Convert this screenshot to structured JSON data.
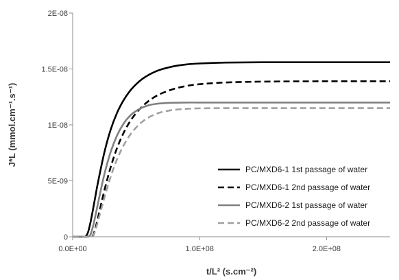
{
  "chart_data": {
    "type": "line",
    "xlabel": "t/L² (s.cm⁻²)",
    "ylabel": "J*L (mmol.cm⁻¹.s⁻¹)",
    "xlim": [
      0,
      250000000
    ],
    "ylim": [
      0,
      2e-08
    ],
    "x_ticks": [
      {
        "value": 0,
        "label": "0.0E+00"
      },
      {
        "value": 100000000,
        "label": "1.0E+08"
      },
      {
        "value": 200000000,
        "label": "2.0E+08"
      }
    ],
    "y_ticks": [
      {
        "value": 0,
        "label": "0"
      },
      {
        "value": 5e-09,
        "label": "5E-09"
      },
      {
        "value": 1e-08,
        "label": "1E-08"
      },
      {
        "value": 1.5e-08,
        "label": "1.5E-08"
      },
      {
        "value": 2e-08,
        "label": "2E-08"
      }
    ],
    "grid": false,
    "legend_position": "bottom-right",
    "x": [
      0,
      2000000,
      4000000,
      6000000,
      8000000,
      10000000,
      12000000,
      14000000,
      16000000,
      18000000,
      20000000,
      25000000,
      30000000,
      35000000,
      40000000,
      45000000,
      50000000,
      55000000,
      60000000,
      65000000,
      70000000,
      80000000,
      90000000,
      100000000,
      120000000,
      150000000,
      200000000,
      250000000
    ],
    "series": [
      {
        "name": "PC/MXD6-1 1st passage of water",
        "color": "#000000",
        "dash": "solid",
        "values": [
          0,
          0,
          0,
          0,
          0,
          1e-11,
          3.7e-10,
          1.27e-09,
          2.44e-09,
          3.68e-09,
          4.9e-09,
          7.56e-09,
          9.6e-09,
          1.109e-08,
          1.219e-08,
          1.302e-08,
          1.364e-08,
          1.412e-08,
          1.448e-08,
          1.476e-08,
          1.497e-08,
          1.525e-08,
          1.541e-08,
          1.549e-08,
          1.557e-08,
          1.56e-08,
          1.56e-08,
          1.56e-08
        ]
      },
      {
        "name": "PC/MXD6-1 2nd passage of water",
        "color": "#000000",
        "dash": "dashed",
        "values": [
          0,
          0,
          0,
          0,
          0,
          0,
          0,
          0,
          1.2e-10,
          8e-10,
          1.74e-09,
          4.15e-09,
          6.25e-09,
          7.95e-09,
          9.26e-09,
          1.028e-08,
          1.106e-08,
          1.167e-08,
          1.215e-08,
          1.253e-08,
          1.282e-08,
          1.323e-08,
          1.349e-08,
          1.364e-08,
          1.379e-08,
          1.387e-08,
          1.39e-08,
          1.39e-08
        ]
      },
      {
        "name": "PC/MXD6-2 1st passage of water",
        "color": "#808080",
        "dash": "solid",
        "values": [
          0,
          0,
          0,
          0,
          0,
          0,
          0,
          1.9e-10,
          9.2e-10,
          1.93e-09,
          3.02e-09,
          5.6e-09,
          7.61e-09,
          9.07e-09,
          1.01e-08,
          1.08e-08,
          1.125e-08,
          1.156e-08,
          1.176e-08,
          1.187e-08,
          1.193e-08,
          1.198e-08,
          1.2e-08,
          1.2e-08,
          1.2e-08,
          1.2e-08,
          1.2e-08,
          1.2e-08
        ]
      },
      {
        "name": "PC/MXD6-2 2nd passage of water",
        "color": "#a0a0a0",
        "dash": "dashed",
        "values": [
          0,
          0,
          0,
          0,
          0,
          0,
          0,
          0,
          5e-11,
          6.2e-10,
          1.42e-09,
          3.5e-09,
          5.39e-09,
          6.94e-09,
          8.14e-09,
          9.07e-09,
          9.77e-09,
          1.03e-08,
          1.068e-08,
          1.095e-08,
          1.114e-08,
          1.135e-08,
          1.144e-08,
          1.148e-08,
          1.15e-08,
          1.15e-08,
          1.15e-08,
          1.15e-08
        ]
      }
    ]
  }
}
